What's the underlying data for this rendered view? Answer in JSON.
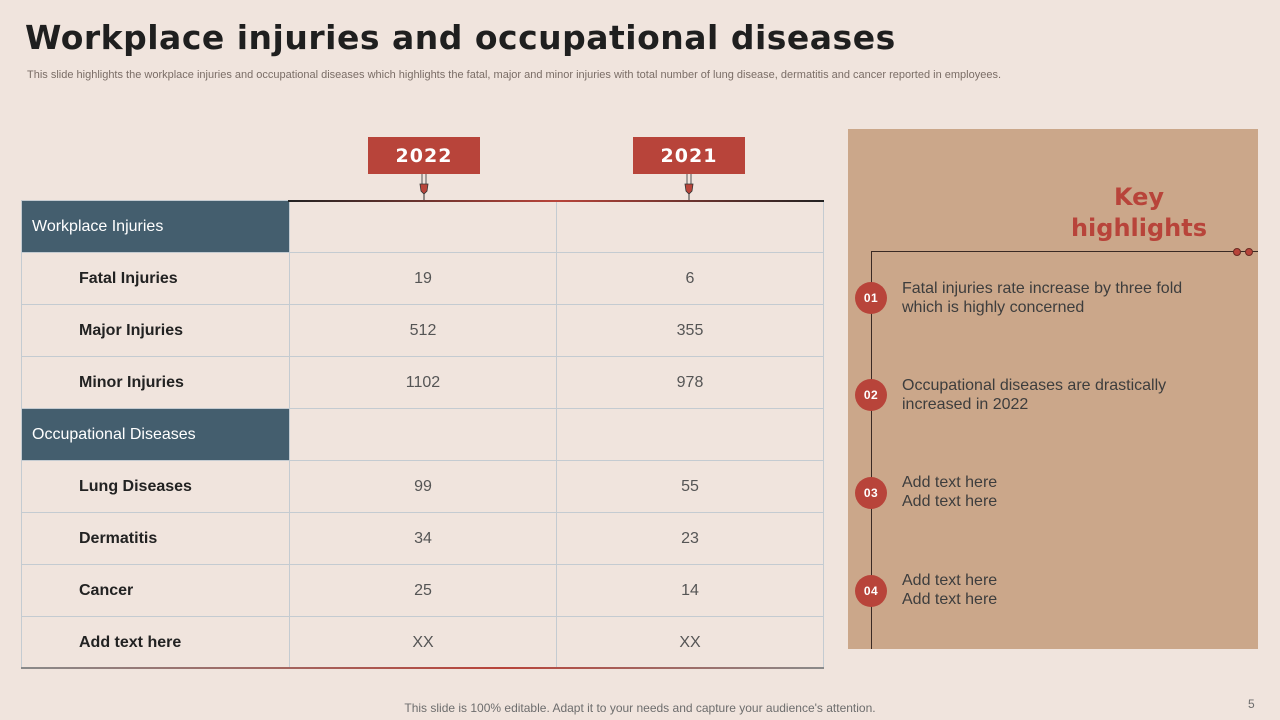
{
  "title": "Workplace injuries and occupational diseases",
  "subtitle": "This slide highlights the workplace injuries and occupational diseases which highlights the fatal, major and minor injuries with total number of lung disease, dermatitis and cancer reported in employees.",
  "columns": [
    "2022",
    "2021"
  ],
  "table": {
    "section1": "Workplace Injuries",
    "rows1": [
      {
        "label": "Fatal Injuries",
        "v2022": "19",
        "v2021": "6"
      },
      {
        "label": "Major Injuries",
        "v2022": "512",
        "v2021": "355"
      },
      {
        "label": "Minor Injuries",
        "v2022": "1102",
        "v2021": "978"
      }
    ],
    "section2": "Occupational Diseases",
    "rows2": [
      {
        "label": "Lung Diseases",
        "v2022": "99",
        "v2021": "55"
      },
      {
        "label": "Dermatitis",
        "v2022": "34",
        "v2021": "23"
      },
      {
        "label": "Cancer",
        "v2022": "25",
        "v2021": "14"
      },
      {
        "label": "Add text here",
        "v2022": "XX",
        "v2021": "XX"
      }
    ]
  },
  "highlights": {
    "title": "Key highlights",
    "items": [
      {
        "num": "01",
        "text": "Fatal injuries rate increase by three fold which is highly concerned"
      },
      {
        "num": "02",
        "text": "Occupational diseases are drastically increased in 2022"
      },
      {
        "num": "03",
        "text": "Add text here Add text here"
      },
      {
        "num": "04",
        "text": "Add text here Add text here"
      }
    ]
  },
  "footer": "This slide is 100% editable. Adapt it to your needs and capture your audience's attention.",
  "page_number": "5",
  "colors": {
    "accent": "#b8443a",
    "section": "#445e6e",
    "panel": "#cba78a",
    "background": "#f0e4dd"
  }
}
